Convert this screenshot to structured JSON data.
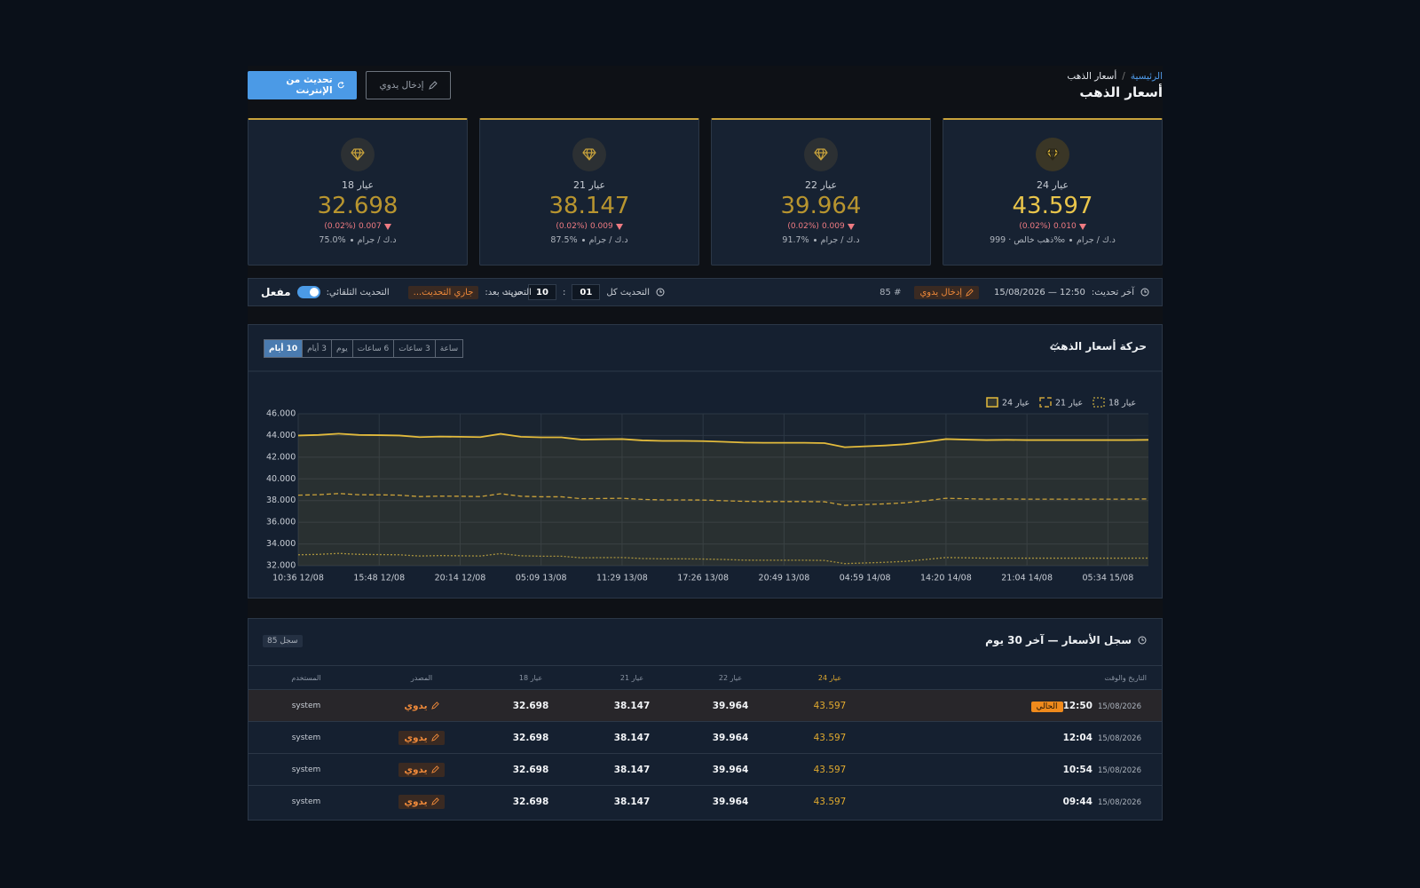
{
  "header": {
    "breadcrumb": {
      "home": "الرئيسية",
      "separator": "/",
      "current": "أسعار الذهب"
    },
    "title": "أسعار الذهب",
    "buttons": {
      "manual": "إدخال يدوي",
      "refresh": "تحديث من الإنترنت"
    }
  },
  "cards": [
    {
      "label": "عيار 24",
      "price": "43.597",
      "change": "0.010",
      "change_pct": "(0.02%)",
      "unit": "د.ك / جرام",
      "note": "ذهب خالص · 999‰"
    },
    {
      "label": "عيار 22",
      "price": "39.964",
      "change": "0.009",
      "change_pct": "(0.02%)",
      "unit": "د.ك / جرام",
      "note": "91.7%"
    },
    {
      "label": "عيار 21",
      "price": "38.147",
      "change": "0.009",
      "change_pct": "(0.02%)",
      "unit": "د.ك / جرام",
      "note": "87.5%"
    },
    {
      "label": "عيار 18",
      "price": "32.698",
      "change": "0.007",
      "change_pct": "(0.02%)",
      "unit": "د.ك / جرام",
      "note": "75.0%"
    }
  ],
  "status": {
    "last_label": "آخر تحديث:",
    "last_value": "12:50 — 15/08/2026",
    "source_badge": "إدخال يدوي",
    "record": "# 85",
    "interval_label": "التحديث كل",
    "hours": "01",
    "separator": ":",
    "minutes": "10",
    "interval_unit": "س:د",
    "next_label": "التحديث بعد:",
    "next_value": "جاري التحديث...",
    "auto_label": "التحديث التلقائي:",
    "auto_state": "مفعل",
    "auto_on": true
  },
  "chart_panel": {
    "ranges": [
      {
        "label": "ساعة"
      },
      {
        "label": "3 ساعات"
      },
      {
        "label": "6 ساعات"
      },
      {
        "label": "يوم"
      },
      {
        "label": "3 أيام"
      },
      {
        "label": "10 أيام",
        "active": true
      }
    ]
  },
  "chart_data": {
    "type": "line",
    "title": "حركة أسعار الذهب",
    "grid": true,
    "categories": [
      "10:36 12/08",
      null,
      null,
      null,
      "15:48 12/08",
      null,
      null,
      null,
      "20:14 12/08",
      null,
      null,
      null,
      "05:09 13/08",
      null,
      null,
      null,
      "11:29 13/08",
      null,
      null,
      null,
      "17:26 13/08",
      null,
      null,
      null,
      "20:49 13/08",
      null,
      null,
      null,
      "04:59 14/08",
      null,
      null,
      null,
      "14:20 14/08",
      null,
      null,
      null,
      "21:04 14/08",
      null,
      null,
      null,
      "05:34 15/08",
      null,
      null
    ],
    "ylim": [
      32,
      46
    ],
    "yticks": [
      {
        "value": 32,
        "label": "32.000"
      },
      {
        "value": 34,
        "label": "34.000"
      },
      {
        "value": 36,
        "label": "36.000"
      },
      {
        "value": 38,
        "label": "38.000"
      },
      {
        "value": 40,
        "label": "40.000"
      },
      {
        "value": 42,
        "label": "42.000"
      },
      {
        "value": 44,
        "label": "44.000"
      },
      {
        "value": 46,
        "label": "46.000"
      }
    ],
    "series": [
      {
        "name": "عيار 24",
        "color": "#e3bb3c",
        "dash": "solid",
        "fill": true,
        "values": [
          44.0,
          44.05,
          44.17,
          44.05,
          44.03,
          44.0,
          43.85,
          43.9,
          43.88,
          43.85,
          44.15,
          43.88,
          43.83,
          43.83,
          43.62,
          43.65,
          43.67,
          43.55,
          43.5,
          43.5,
          43.48,
          43.42,
          43.35,
          43.33,
          43.33,
          43.33,
          43.3,
          42.92,
          43.0,
          43.08,
          43.2,
          43.42,
          43.67,
          43.62,
          43.58,
          43.6,
          43.58,
          43.58,
          43.58,
          43.58,
          43.58,
          43.58,
          43.6
        ]
      },
      {
        "name": "عيار 21",
        "color": "#c9a13a",
        "dash": "dashed",
        "values": [
          38.5,
          38.54,
          38.65,
          38.54,
          38.53,
          38.5,
          38.37,
          38.41,
          38.4,
          38.37,
          38.63,
          38.4,
          38.35,
          38.35,
          38.17,
          38.19,
          38.21,
          38.11,
          38.06,
          38.06,
          38.05,
          37.99,
          37.93,
          37.91,
          37.91,
          37.91,
          37.89,
          37.56,
          37.63,
          37.7,
          37.8,
          37.99,
          38.21,
          38.17,
          38.13,
          38.15,
          38.13,
          38.13,
          38.13,
          38.13,
          38.13,
          38.13,
          38.15
        ]
      },
      {
        "name": "عيار 18",
        "color": "#a8923e",
        "dash": "dotted",
        "values": [
          33.0,
          33.04,
          33.13,
          33.04,
          33.02,
          33.0,
          32.89,
          32.93,
          32.91,
          32.89,
          33.11,
          32.91,
          32.87,
          32.87,
          32.72,
          32.74,
          32.75,
          32.66,
          32.63,
          32.63,
          32.61,
          32.57,
          32.51,
          32.5,
          32.5,
          32.5,
          32.48,
          32.19,
          32.25,
          32.31,
          32.4,
          32.57,
          32.75,
          32.72,
          32.69,
          32.7,
          32.69,
          32.69,
          32.69,
          32.69,
          32.69,
          32.69,
          32.7
        ]
      }
    ]
  },
  "history": {
    "title": "سجل الأسعار — آخر 30 يوم",
    "count": "85 سجل",
    "columns": [
      "التاريخ والوقت",
      "عيار 24",
      "عيار 22",
      "عيار 21",
      "عيار 18",
      "المصدر",
      "المستخدم"
    ],
    "rows": [
      {
        "time": "12:50",
        "date": "15/08/2026",
        "badge": "الحالي",
        "values": [
          "43.597",
          "39.964",
          "38.147",
          "32.698"
        ],
        "source": "يدوي",
        "user": "system"
      },
      {
        "time": "12:04",
        "date": "15/08/2026",
        "values": [
          "43.597",
          "39.964",
          "38.147",
          "32.698"
        ],
        "source": "يدوي",
        "user": "system"
      },
      {
        "time": "10:54",
        "date": "15/08/2026",
        "values": [
          "43.597",
          "39.964",
          "38.147",
          "32.698"
        ],
        "source": "يدوي",
        "user": "system"
      },
      {
        "time": "09:44",
        "date": "15/08/2026",
        "values": [
          "43.597",
          "39.964",
          "38.147",
          "32.698"
        ],
        "source": "يدوي",
        "user": "system"
      }
    ]
  }
}
